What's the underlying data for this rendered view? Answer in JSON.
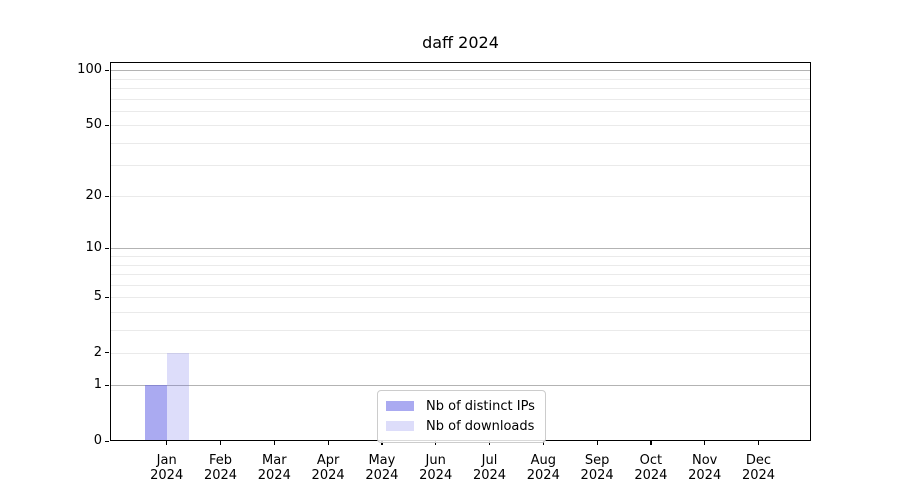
{
  "chart_data": {
    "type": "bar",
    "title": "daff 2024",
    "categories": [
      "Jan 2024",
      "Feb 2024",
      "Mar 2024",
      "Apr 2024",
      "May 2024",
      "Jun 2024",
      "Jul 2024",
      "Aug 2024",
      "Sep 2024",
      "Oct 2024",
      "Nov 2024",
      "Dec 2024"
    ],
    "series": [
      {
        "name": "Nb of distinct IPs",
        "color": "rgba(100,100,230,0.55)",
        "values": [
          1,
          0,
          0,
          0,
          0,
          0,
          0,
          0,
          0,
          0,
          0,
          0
        ]
      },
      {
        "name": "Nb of downloads",
        "color": "rgba(100,100,230,0.22)",
        "values": [
          2,
          0,
          0,
          0,
          0,
          0,
          0,
          0,
          0,
          0,
          0,
          0
        ]
      }
    ],
    "xlabel": "",
    "ylabel": "",
    "yscale": "log1p",
    "ylim": [
      0,
      112
    ],
    "y_ticks": [
      0,
      1,
      2,
      5,
      10,
      20,
      50,
      100
    ],
    "gridlines": {
      "major": [
        1,
        10,
        100
      ],
      "minor": [
        2,
        3,
        4,
        5,
        6,
        7,
        8,
        9,
        20,
        30,
        40,
        50,
        60,
        70,
        80,
        90
      ],
      "major_color": "#b3b3b3",
      "minor_color": "#eaeaea"
    },
    "legend": {
      "position": "lower center",
      "grid_on": true
    }
  }
}
